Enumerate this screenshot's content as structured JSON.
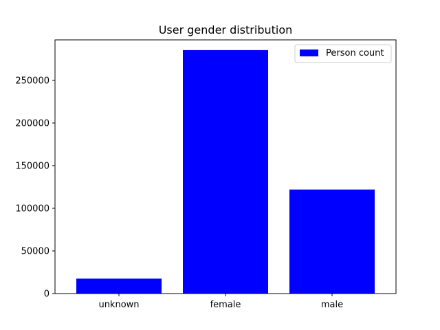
{
  "chart_data": {
    "type": "bar",
    "title": "User gender distribution",
    "xlabel": "",
    "ylabel": "",
    "categories": [
      "unknown",
      "female",
      "male"
    ],
    "series": [
      {
        "name": "Person count",
        "values": [
          17500,
          285500,
          122000
        ],
        "color": "#0000ff"
      }
    ],
    "ylim": [
      0,
      297500
    ],
    "yticks": [
      0,
      50000,
      100000,
      150000,
      200000,
      250000
    ],
    "ytick_labels": [
      "0",
      "50000",
      "100000",
      "150000",
      "200000",
      "250000"
    ],
    "grid": false,
    "legend": {
      "position": "top-right",
      "entries": [
        "Person count"
      ]
    }
  }
}
